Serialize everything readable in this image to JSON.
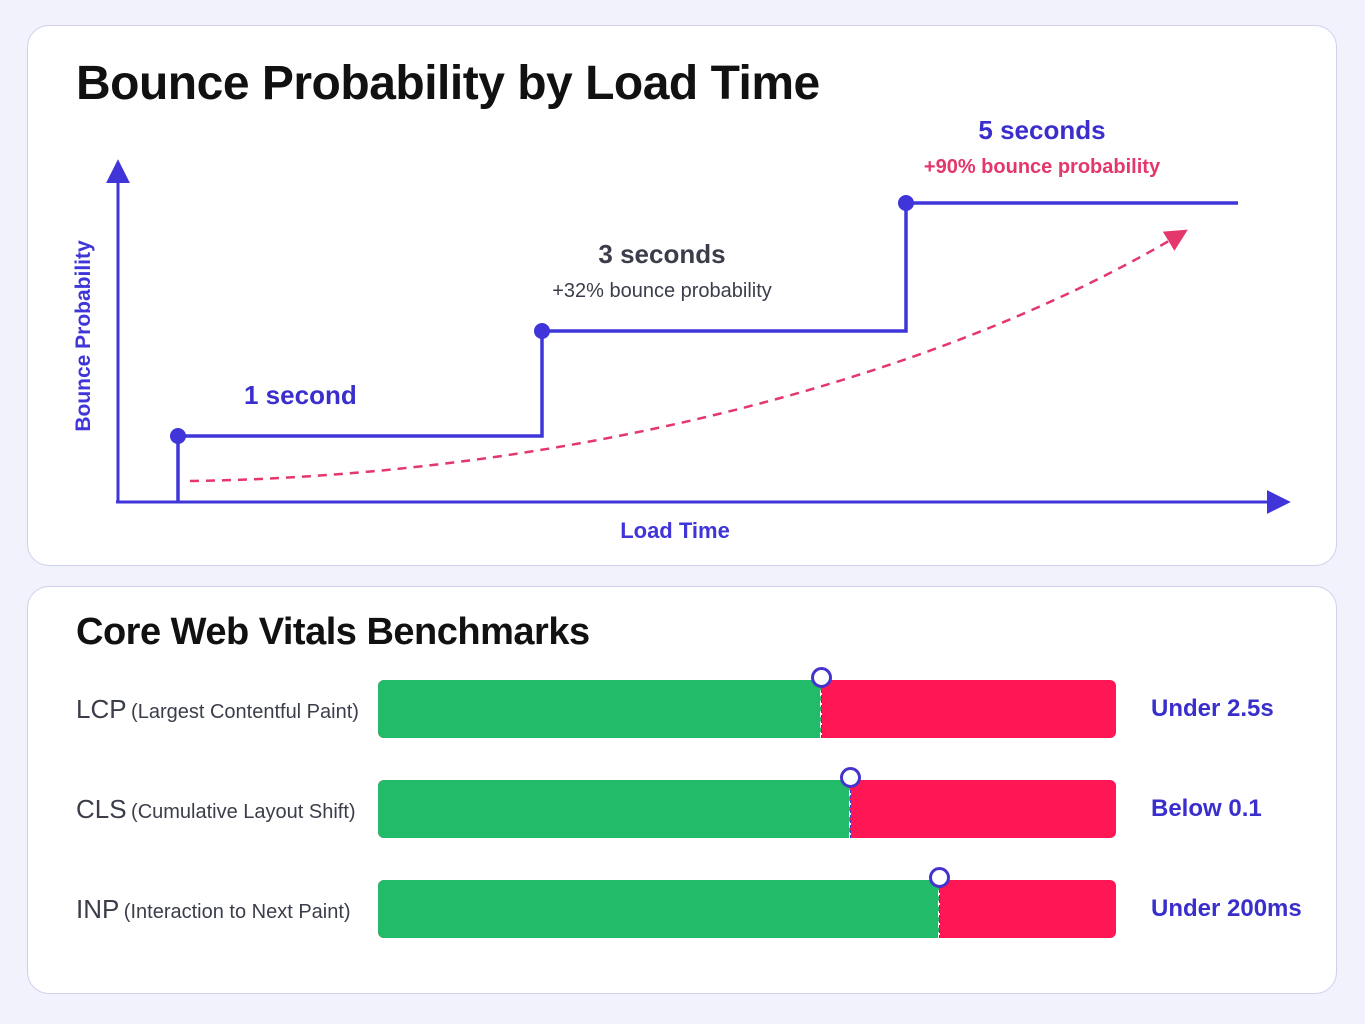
{
  "colors": {
    "axis": "#3f35d8",
    "step_line": "#3f35d8",
    "trend": "#e4376b",
    "good": "#22bb6a",
    "poor": "#ff1654",
    "accent_text": "#3a2fcc"
  },
  "bounce_chart": {
    "title": "Bounce Probability by Load Time"
  },
  "vitals": {
    "title": "Core Web Vitals Benchmarks",
    "metrics": [
      {
        "abbr": "LCP",
        "full": "(Largest Contentful Paint)",
        "threshold": "Under 2.5s",
        "good_fraction": 0.6
      },
      {
        "abbr": "CLS",
        "full": "(Cumulative Layout Shift)",
        "threshold": "Below 0.1",
        "good_fraction": 0.64
      },
      {
        "abbr": "INP",
        "full": "(Interaction to Next Paint)",
        "threshold": "Under 200ms",
        "good_fraction": 0.76
      }
    ]
  },
  "chart_data": [
    {
      "type": "line",
      "title": "Bounce Probability by Load Time",
      "xlabel": "Load Time",
      "ylabel": "Bounce Probability",
      "grid": false,
      "legend": "none",
      "step": true,
      "trend_line": "dashed",
      "points": [
        {
          "x": 1,
          "label": "1 second",
          "note": ""
        },
        {
          "x": 3,
          "label": "3 seconds",
          "note": "+32% bounce probability",
          "value": 32
        },
        {
          "x": 5,
          "label": "5 seconds",
          "note": "+90% bounce probability",
          "value": 90
        }
      ]
    },
    {
      "type": "bar",
      "title": "Core Web Vitals Benchmarks",
      "categories": [
        "LCP (Largest Contentful Paint)",
        "CLS (Cumulative Layout Shift)",
        "INP (Interaction to Next Paint)"
      ],
      "good_fraction": [
        0.6,
        0.64,
        0.76
      ],
      "threshold_labels": [
        "Under 2.5s",
        "Below 0.1",
        "Under 200ms"
      ]
    }
  ]
}
